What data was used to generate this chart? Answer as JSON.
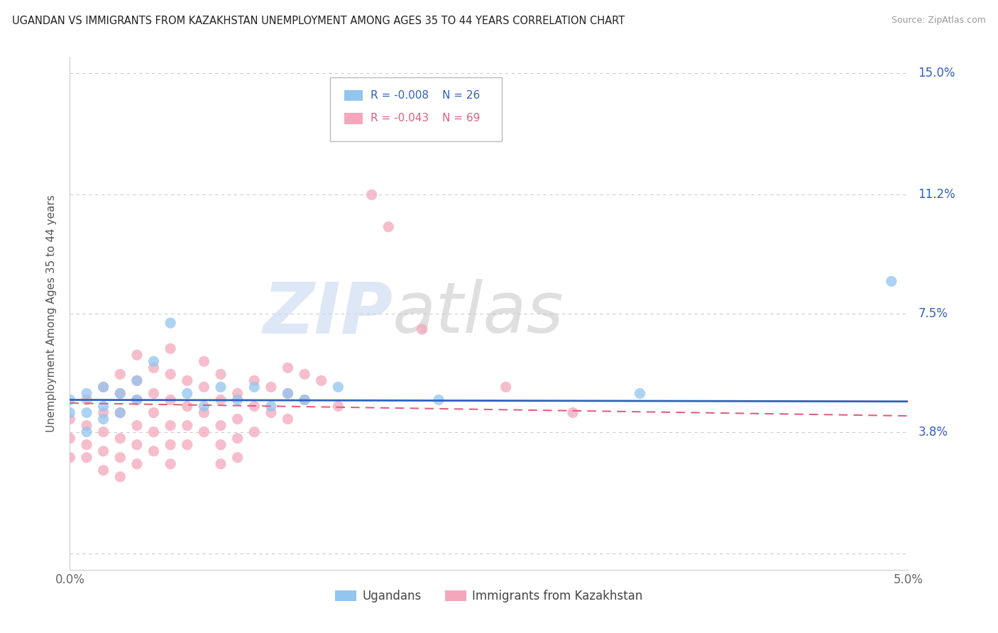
{
  "title": "UGANDAN VS IMMIGRANTS FROM KAZAKHSTAN UNEMPLOYMENT AMONG AGES 35 TO 44 YEARS CORRELATION CHART",
  "source": "Source: ZipAtlas.com",
  "ylabel": "Unemployment Among Ages 35 to 44 years",
  "xlim": [
    0.0,
    0.05
  ],
  "ylim": [
    -0.005,
    0.155
  ],
  "yticks": [
    0.0,
    0.038,
    0.075,
    0.112,
    0.15
  ],
  "ytick_labels": [
    "",
    "3.8%",
    "7.5%",
    "11.2%",
    "15.0%"
  ],
  "xticks": [
    0.0,
    0.01,
    0.02,
    0.03,
    0.04,
    0.05
  ],
  "xtick_labels": [
    "0.0%",
    "",
    "",
    "",
    "",
    "5.0%"
  ],
  "ugandan_color": "#92C5F0",
  "kazakhstan_color": "#F4A7BB",
  "ugandan_line_color": "#3060C0",
  "kazakhstan_line_color": "#E06080",
  "legend_R_ugandan": "-0.008",
  "legend_N_ugandan": "26",
  "legend_R_kazakhstan": "-0.043",
  "legend_N_kazakhstan": "69",
  "watermark_text": "ZIP",
  "watermark_text2": "atlas",
  "ugandan_scatter": [
    [
      0.0,
      0.048
    ],
    [
      0.0,
      0.044
    ],
    [
      0.001,
      0.05
    ],
    [
      0.001,
      0.044
    ],
    [
      0.001,
      0.038
    ],
    [
      0.002,
      0.052
    ],
    [
      0.002,
      0.046
    ],
    [
      0.002,
      0.042
    ],
    [
      0.003,
      0.05
    ],
    [
      0.003,
      0.044
    ],
    [
      0.004,
      0.048
    ],
    [
      0.004,
      0.054
    ],
    [
      0.005,
      0.06
    ],
    [
      0.006,
      0.072
    ],
    [
      0.007,
      0.05
    ],
    [
      0.008,
      0.046
    ],
    [
      0.009,
      0.052
    ],
    [
      0.01,
      0.048
    ],
    [
      0.011,
      0.052
    ],
    [
      0.012,
      0.046
    ],
    [
      0.013,
      0.05
    ],
    [
      0.014,
      0.048
    ],
    [
      0.016,
      0.052
    ],
    [
      0.022,
      0.048
    ],
    [
      0.034,
      0.05
    ],
    [
      0.049,
      0.085
    ]
  ],
  "kazakhstan_scatter": [
    [
      0.0,
      0.042
    ],
    [
      0.0,
      0.036
    ],
    [
      0.0,
      0.03
    ],
    [
      0.001,
      0.048
    ],
    [
      0.001,
      0.04
    ],
    [
      0.001,
      0.034
    ],
    [
      0.001,
      0.03
    ],
    [
      0.002,
      0.052
    ],
    [
      0.002,
      0.044
    ],
    [
      0.002,
      0.038
    ],
    [
      0.002,
      0.032
    ],
    [
      0.002,
      0.026
    ],
    [
      0.003,
      0.056
    ],
    [
      0.003,
      0.05
    ],
    [
      0.003,
      0.044
    ],
    [
      0.003,
      0.036
    ],
    [
      0.003,
      0.03
    ],
    [
      0.003,
      0.024
    ],
    [
      0.004,
      0.062
    ],
    [
      0.004,
      0.054
    ],
    [
      0.004,
      0.048
    ],
    [
      0.004,
      0.04
    ],
    [
      0.004,
      0.034
    ],
    [
      0.004,
      0.028
    ],
    [
      0.005,
      0.058
    ],
    [
      0.005,
      0.05
    ],
    [
      0.005,
      0.044
    ],
    [
      0.005,
      0.038
    ],
    [
      0.005,
      0.032
    ],
    [
      0.006,
      0.064
    ],
    [
      0.006,
      0.056
    ],
    [
      0.006,
      0.048
    ],
    [
      0.006,
      0.04
    ],
    [
      0.006,
      0.034
    ],
    [
      0.006,
      0.028
    ],
    [
      0.007,
      0.054
    ],
    [
      0.007,
      0.046
    ],
    [
      0.007,
      0.04
    ],
    [
      0.007,
      0.034
    ],
    [
      0.008,
      0.06
    ],
    [
      0.008,
      0.052
    ],
    [
      0.008,
      0.044
    ],
    [
      0.008,
      0.038
    ],
    [
      0.009,
      0.056
    ],
    [
      0.009,
      0.048
    ],
    [
      0.009,
      0.04
    ],
    [
      0.009,
      0.034
    ],
    [
      0.009,
      0.028
    ],
    [
      0.01,
      0.05
    ],
    [
      0.01,
      0.042
    ],
    [
      0.01,
      0.036
    ],
    [
      0.01,
      0.03
    ],
    [
      0.011,
      0.054
    ],
    [
      0.011,
      0.046
    ],
    [
      0.011,
      0.038
    ],
    [
      0.012,
      0.052
    ],
    [
      0.012,
      0.044
    ],
    [
      0.013,
      0.058
    ],
    [
      0.013,
      0.05
    ],
    [
      0.013,
      0.042
    ],
    [
      0.014,
      0.056
    ],
    [
      0.014,
      0.048
    ],
    [
      0.015,
      0.054
    ],
    [
      0.016,
      0.046
    ],
    [
      0.018,
      0.112
    ],
    [
      0.019,
      0.102
    ],
    [
      0.021,
      0.07
    ],
    [
      0.026,
      0.052
    ],
    [
      0.03,
      0.044
    ]
  ],
  "background_color": "#FFFFFF"
}
